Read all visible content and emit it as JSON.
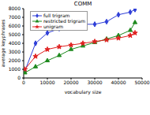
{
  "chart_data": {
    "type": "line",
    "title": "COMM",
    "x_label": "vocabulary size",
    "y_label": "average keyphrases",
    "x": [
      500,
      5000,
      10000,
      15000,
      20000,
      25000,
      30000,
      35000,
      40000,
      45000,
      47000
    ],
    "series": [
      {
        "name": "full trigram",
        "color": "#2f3fd8",
        "marker": "diamond",
        "values": [
          800,
          4000,
          5200,
          5700,
          6000,
          6200,
          6200,
          6500,
          7300,
          7600,
          7900
        ]
      },
      {
        "name": "restricted trigram",
        "color": "#1e8a1e",
        "marker": "triangle",
        "values": [
          600,
          1300,
          2000,
          2600,
          3300,
          3700,
          4100,
          4500,
          4900,
          5500,
          6400
        ]
      },
      {
        "name": "unigram",
        "color": "#e02020",
        "marker": "star",
        "values": [
          1000,
          2500,
          3300,
          3600,
          3800,
          4000,
          4200,
          4400,
          4600,
          4900,
          5200
        ]
      }
    ],
    "xlim": [
      0,
      50000
    ],
    "xticks": [
      0,
      10000,
      20000,
      30000,
      40000,
      50000
    ],
    "ylim": [
      0,
      8000
    ],
    "yticks": [
      0,
      1000,
      2000,
      3000,
      4000,
      5000,
      6000,
      7000,
      8000
    ],
    "grid": false,
    "legend": "upper left"
  }
}
